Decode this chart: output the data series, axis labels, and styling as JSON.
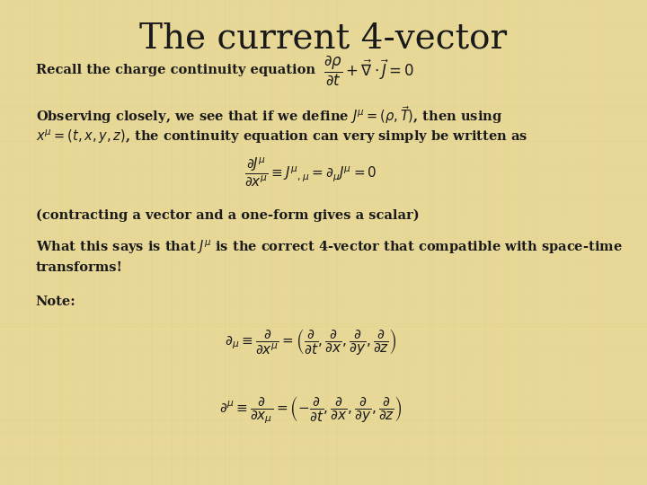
{
  "background_color": "#e8d898",
  "title": "The current 4-vector",
  "title_fontsize": 28,
  "title_color": "#1a1a1a",
  "text_color": "#1a1a1a",
  "body_fontsize": 10.5,
  "formula_fontsize": 11,
  "line1_label": "Recall the charge continuity equation",
  "line1_formula": "$\\dfrac{\\partial \\rho}{\\partial t} + \\vec{\\nabla} \\cdot \\vec{J} = 0$",
  "line2": "Observing closely, we see that if we define $J^{\\mu} = (\\rho, \\vec{T})$, then using",
  "line3": "$x^{\\mu} = (t, x, y, z)$, the continuity equation can very simply be written as",
  "line4": "$\\dfrac{\\partial J^{\\mu}}{\\partial x^{\\mu}} \\equiv J^{\\mu}{}_{,\\mu} = \\partial_{\\mu}J^{\\mu} = 0$",
  "line5": "(contracting a vector and a one-form gives a scalar)",
  "line6a": "What this says is that $J^{\\mu}$ is the correct 4-vector that compatible with space-time",
  "line6b": "transforms!",
  "line7": "Note:",
  "line8": "$\\partial_{\\mu} \\equiv \\dfrac{\\partial}{\\partial x^{\\mu}} = \\left(\\dfrac{\\partial}{\\partial t}, \\dfrac{\\partial}{\\partial x}, \\dfrac{\\partial}{\\partial y}, \\dfrac{\\partial}{\\partial z}\\right)$",
  "line9": "$\\partial^{\\mu} \\equiv \\dfrac{\\partial}{\\partial x_{\\mu}} = \\left(-\\dfrac{\\partial}{\\partial t}, \\dfrac{\\partial}{\\partial x}, \\dfrac{\\partial}{\\partial y}, \\dfrac{\\partial}{\\partial z}\\right)$"
}
